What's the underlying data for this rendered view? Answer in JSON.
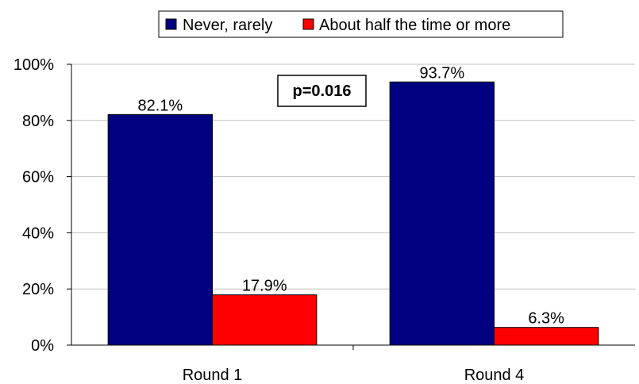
{
  "chart_data": {
    "type": "bar",
    "categories": [
      "Round 1",
      "Round 4"
    ],
    "series": [
      {
        "name": "Never, rarely",
        "values": [
          82.1,
          93.7
        ],
        "labels": [
          "82.1%",
          "93.7%"
        ],
        "color": "#000080"
      },
      {
        "name": "About half the time or more",
        "values": [
          17.9,
          6.3
        ],
        "labels": [
          "17.9%",
          "6.3%"
        ],
        "color": "#ff0000"
      }
    ],
    "ylim": [
      0,
      100
    ],
    "yticks": [
      {
        "value": 0,
        "label": "0%"
      },
      {
        "value": 20,
        "label": "20%"
      },
      {
        "value": 40,
        "label": "40%"
      },
      {
        "value": 60,
        "label": "60%"
      },
      {
        "value": 80,
        "label": "80%"
      },
      {
        "value": 100,
        "label": "100%"
      }
    ],
    "grid": true,
    "legend_position": "top",
    "annotation": "p=0.016"
  }
}
